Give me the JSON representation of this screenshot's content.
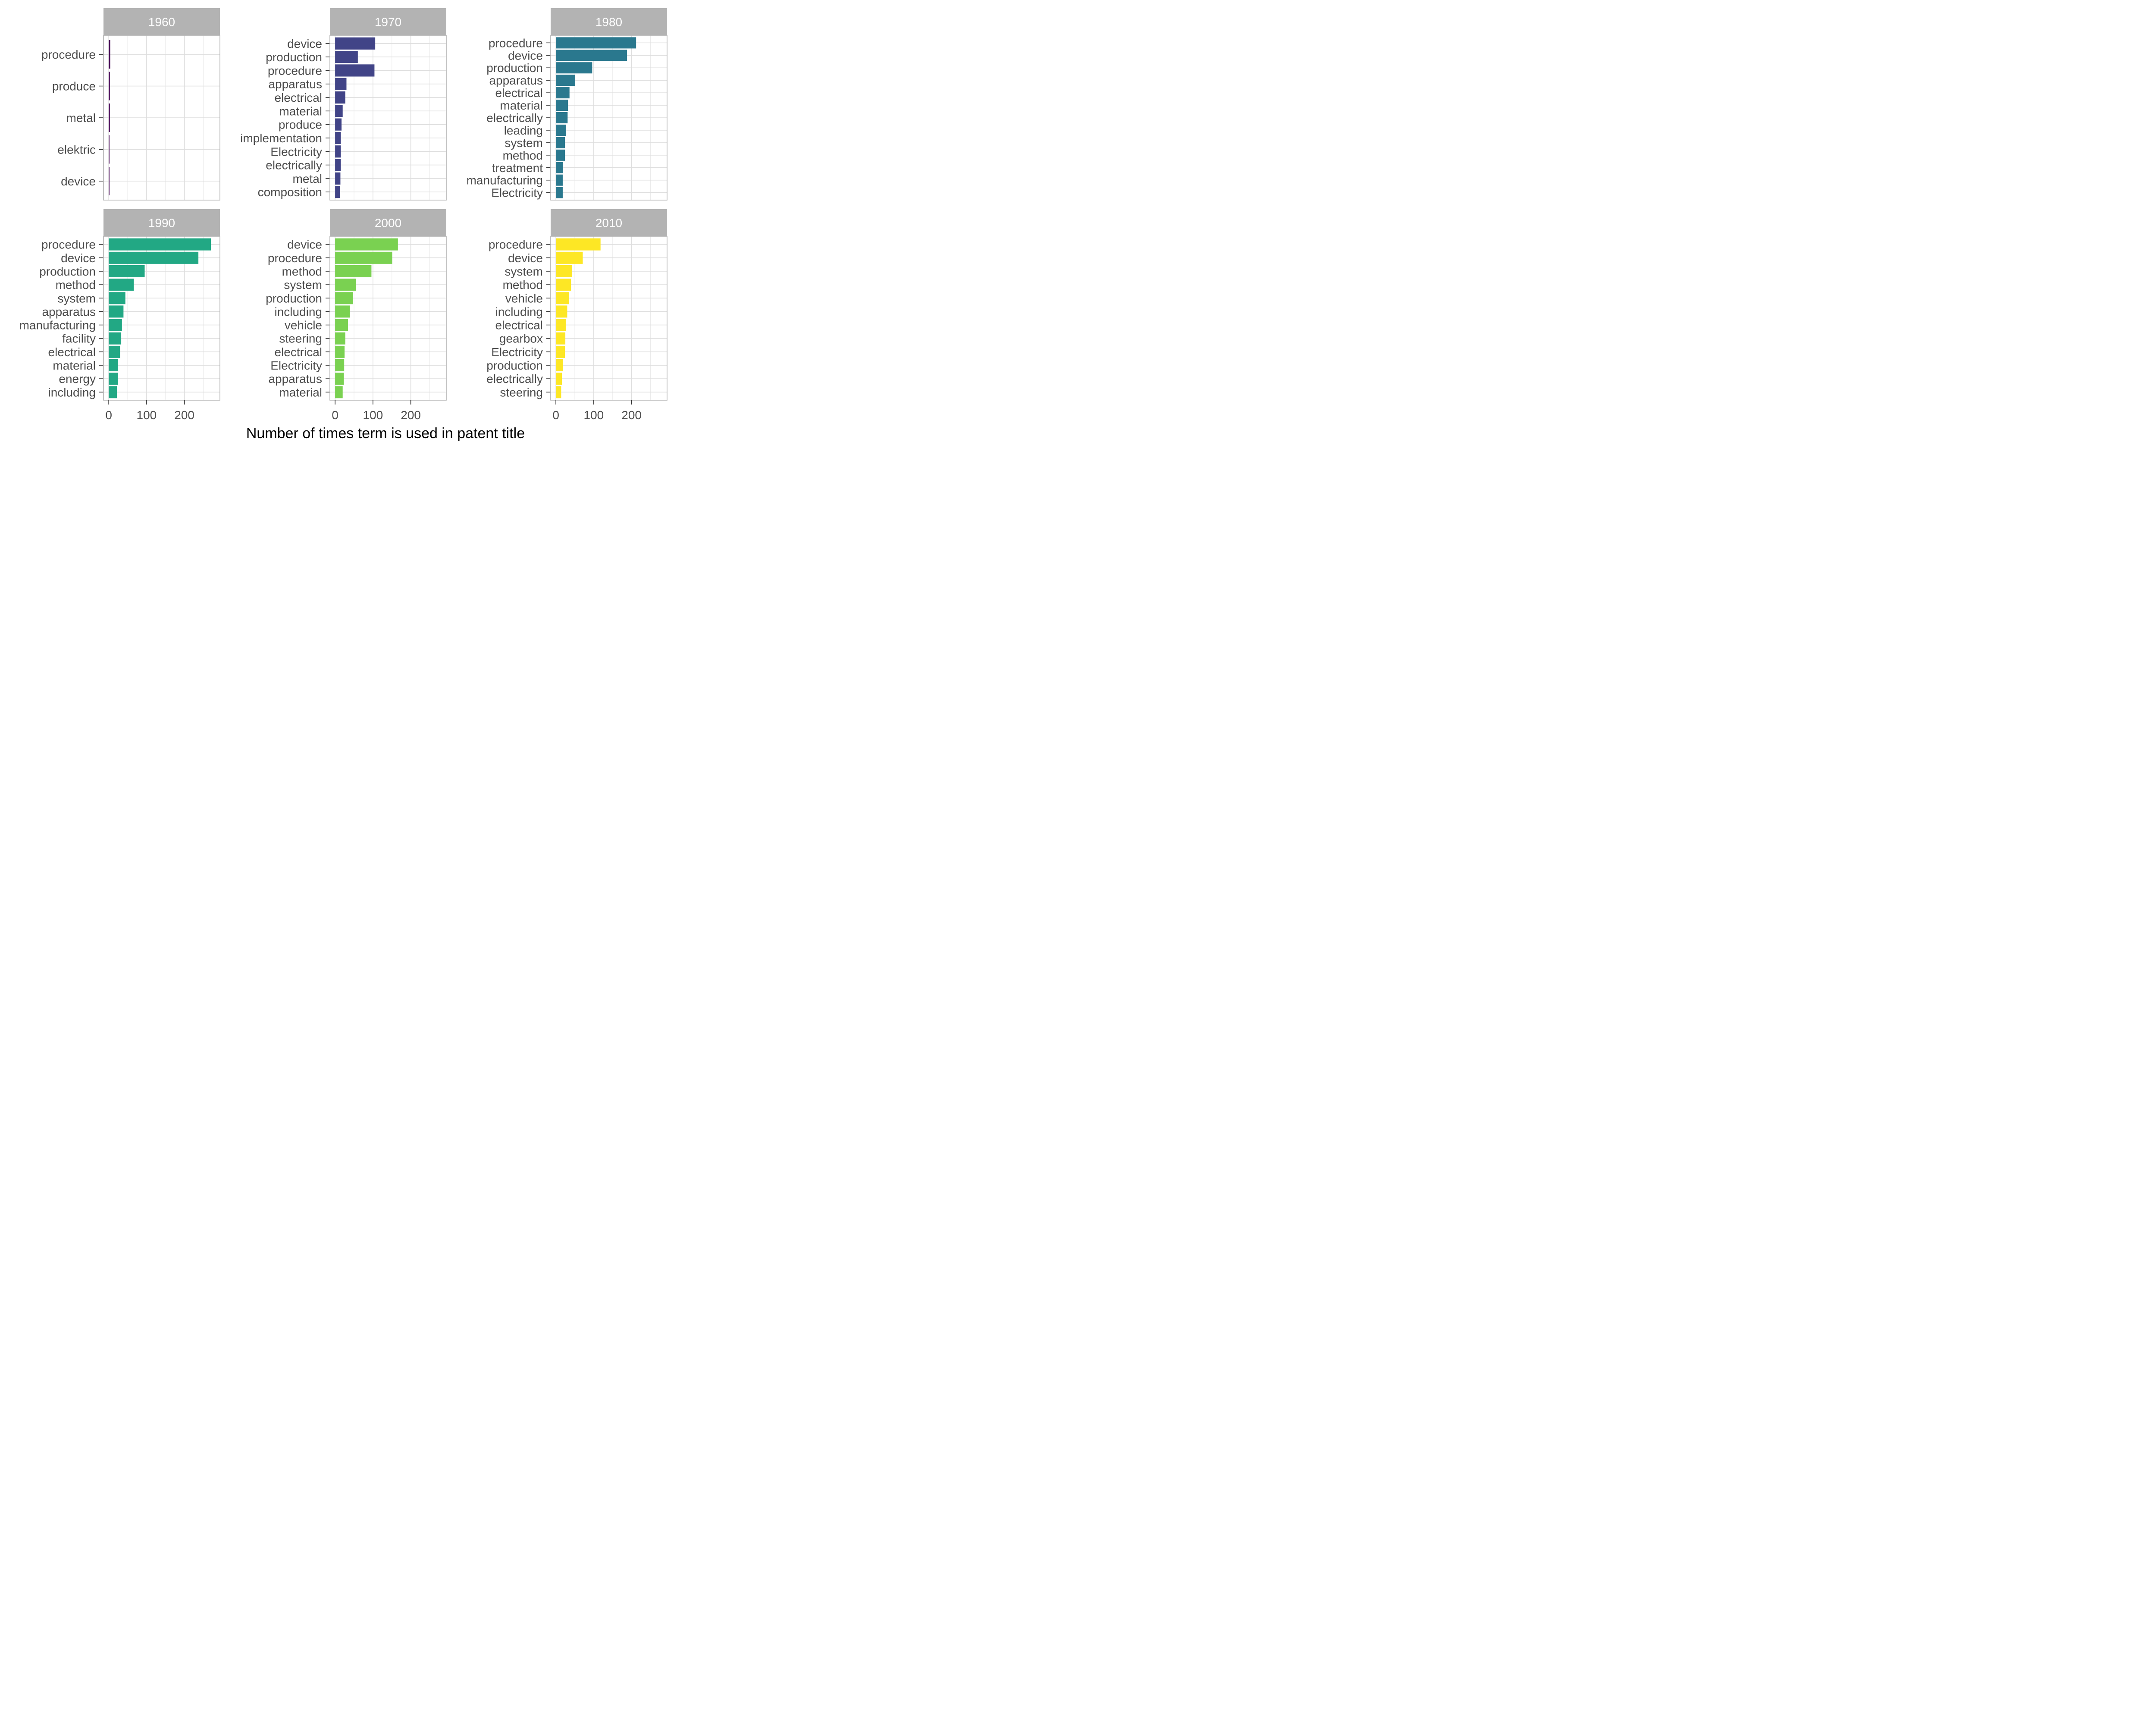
{
  "chart_data": {
    "type": "bar",
    "orientation": "horizontal",
    "xlabel": "Number of times term is used in patent title",
    "xlim": [
      0,
      280
    ],
    "xticks": [
      0,
      100,
      200
    ],
    "grid": true,
    "legend": "none",
    "panels": [
      {
        "title": "1960",
        "color": "#440154",
        "categories": [
          "procedure",
          "produce",
          "metal",
          "elektric",
          "device"
        ],
        "values": [
          4,
          3,
          3,
          2,
          2
        ]
      },
      {
        "title": "1970",
        "color": "#414487",
        "categories": [
          "device",
          "production",
          "procedure",
          "apparatus",
          "electrical",
          "material",
          "produce",
          "implementation",
          "Electricity",
          "electrically",
          "metal",
          "composition"
        ],
        "values": [
          106,
          60,
          104,
          30,
          27,
          20,
          17,
          15,
          15,
          15,
          14,
          13
        ]
      },
      {
        "title": "1980",
        "color": "#2A788E",
        "categories": [
          "procedure",
          "device",
          "production",
          "apparatus",
          "electrical",
          "material",
          "electrically",
          "leading",
          "system",
          "method",
          "treatment",
          "manufacturing",
          "Electricity"
        ],
        "values": [
          212,
          188,
          96,
          51,
          36,
          32,
          31,
          27,
          24,
          24,
          19,
          18,
          18
        ]
      },
      {
        "title": "1990",
        "color": "#22A884",
        "categories": [
          "procedure",
          "device",
          "production",
          "method",
          "system",
          "apparatus",
          "manufacturing",
          "facility",
          "electrical",
          "material",
          "energy",
          "including"
        ],
        "values": [
          270,
          237,
          95,
          66,
          44,
          39,
          35,
          33,
          30,
          25,
          25,
          22
        ]
      },
      {
        "title": "2000",
        "color": "#7AD151",
        "categories": [
          "device",
          "procedure",
          "method",
          "system",
          "production",
          "including",
          "vehicle",
          "steering",
          "electrical",
          "Electricity",
          "apparatus",
          "material"
        ],
        "values": [
          166,
          151,
          96,
          55,
          47,
          39,
          34,
          27,
          25,
          24,
          23,
          20
        ]
      },
      {
        "title": "2010",
        "color": "#FDE725",
        "categories": [
          "procedure",
          "device",
          "system",
          "method",
          "vehicle",
          "including",
          "electrical",
          "gearbox",
          "Electricity",
          "production",
          "electrically",
          "steering"
        ],
        "values": [
          118,
          71,
          43,
          40,
          35,
          30,
          26,
          25,
          24,
          19,
          16,
          14
        ]
      }
    ]
  }
}
